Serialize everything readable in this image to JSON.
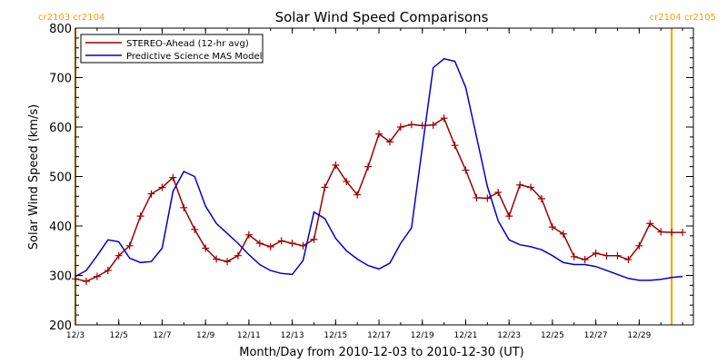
{
  "chart_data": {
    "type": "line",
    "title": "Solar Wind Speed Comparisons",
    "xlabel": "Month/Day from 2010-12-03 to 2010-12-30 (UT)",
    "ylabel": "Solar Wind Speed (km/s)",
    "xlim": [
      "2010-12-03",
      "2010-12-31T12:00"
    ],
    "ylim": [
      200,
      800
    ],
    "x_ticks": [
      {
        "x": "2010-12-03",
        "label": "12/3"
      },
      {
        "x": "2010-12-05",
        "label": "12/5"
      },
      {
        "x": "2010-12-07",
        "label": "12/7"
      },
      {
        "x": "2010-12-09",
        "label": "12/9"
      },
      {
        "x": "2010-12-11",
        "label": "12/11"
      },
      {
        "x": "2010-12-13",
        "label": "12/13"
      },
      {
        "x": "2010-12-15",
        "label": "12/15"
      },
      {
        "x": "2010-12-17",
        "label": "12/17"
      },
      {
        "x": "2010-12-19",
        "label": "12/19"
      },
      {
        "x": "2010-12-21",
        "label": "12/21"
      },
      {
        "x": "2010-12-23",
        "label": "12/23"
      },
      {
        "x": "2010-12-25",
        "label": "12/25"
      },
      {
        "x": "2010-12-27",
        "label": "12/27"
      },
      {
        "x": "2010-12-29",
        "label": "12/29"
      }
    ],
    "y_ticks": [
      200,
      300,
      400,
      500,
      600,
      700,
      800
    ],
    "grid": false,
    "legend_position": "top-left",
    "series": [
      {
        "name": "STEREO-Ahead (12-hr avg)",
        "color": "#990000",
        "marker": "plus",
        "x": [
          "2010-12-03",
          "2010-12-03T12:00",
          "2010-12-04",
          "2010-12-04T12:00",
          "2010-12-05",
          "2010-12-05T12:00",
          "2010-12-06",
          "2010-12-06T12:00",
          "2010-12-07",
          "2010-12-07T12:00",
          "2010-12-08",
          "2010-12-08T12:00",
          "2010-12-09",
          "2010-12-09T12:00",
          "2010-12-10",
          "2010-12-10T12:00",
          "2010-12-11",
          "2010-12-11T12:00",
          "2010-12-12",
          "2010-12-12T12:00",
          "2010-12-13",
          "2010-12-13T12:00",
          "2010-12-14",
          "2010-12-14T12:00",
          "2010-12-15",
          "2010-12-15T12:00",
          "2010-12-16",
          "2010-12-16T12:00",
          "2010-12-17",
          "2010-12-17T12:00",
          "2010-12-18",
          "2010-12-18T12:00",
          "2010-12-19",
          "2010-12-19T12:00",
          "2010-12-20",
          "2010-12-20T12:00",
          "2010-12-21",
          "2010-12-21T12:00",
          "2010-12-22",
          "2010-12-22T12:00",
          "2010-12-23",
          "2010-12-23T12:00",
          "2010-12-24",
          "2010-12-24T12:00",
          "2010-12-25",
          "2010-12-25T12:00",
          "2010-12-26",
          "2010-12-26T12:00",
          "2010-12-27",
          "2010-12-27T12:00",
          "2010-12-28",
          "2010-12-28T12:00",
          "2010-12-29",
          "2010-12-29T12:00",
          "2010-12-30",
          "2010-12-30T12:00",
          "2010-12-31"
        ],
        "y": [
          293,
          288,
          298,
          310,
          340,
          360,
          420,
          465,
          478,
          498,
          437,
          393,
          355,
          333,
          328,
          340,
          382,
          365,
          358,
          370,
          365,
          360,
          373,
          478,
          523,
          490,
          463,
          520,
          586,
          570,
          600,
          605,
          603,
          604,
          618,
          563,
          513,
          457,
          456,
          468,
          420,
          483,
          478,
          455,
          398,
          384,
          338,
          332,
          345,
          340,
          340,
          332,
          360,
          405,
          388,
          387,
          387
        ]
      },
      {
        "name": "Predictive Science MAS Model",
        "color": "#0000cc",
        "marker": "none",
        "x": [
          "2010-12-03",
          "2010-12-03T12:00",
          "2010-12-04",
          "2010-12-04T12:00",
          "2010-12-05",
          "2010-12-05T12:00",
          "2010-12-06",
          "2010-12-06T12:00",
          "2010-12-07",
          "2010-12-07T12:00",
          "2010-12-08",
          "2010-12-08T12:00",
          "2010-12-09",
          "2010-12-09T12:00",
          "2010-12-10",
          "2010-12-10T12:00",
          "2010-12-11",
          "2010-12-11T12:00",
          "2010-12-12",
          "2010-12-12T12:00",
          "2010-12-13",
          "2010-12-13T12:00",
          "2010-12-14",
          "2010-12-14T12:00",
          "2010-12-15",
          "2010-12-15T12:00",
          "2010-12-16",
          "2010-12-16T12:00",
          "2010-12-17",
          "2010-12-17T12:00",
          "2010-12-18",
          "2010-12-18T12:00",
          "2010-12-19",
          "2010-12-19T12:00",
          "2010-12-20",
          "2010-12-20T12:00",
          "2010-12-21",
          "2010-12-21T12:00",
          "2010-12-22",
          "2010-12-22T12:00",
          "2010-12-23",
          "2010-12-23T12:00",
          "2010-12-24",
          "2010-12-24T12:00",
          "2010-12-25",
          "2010-12-25T12:00",
          "2010-12-26",
          "2010-12-26T12:00",
          "2010-12-27",
          "2010-12-27T12:00",
          "2010-12-28",
          "2010-12-28T12:00",
          "2010-12-29",
          "2010-12-29T12:00",
          "2010-12-30",
          "2010-12-30T12:00",
          "2010-12-31"
        ],
        "y": [
          298,
          310,
          340,
          372,
          368,
          335,
          326,
          328,
          355,
          470,
          510,
          500,
          440,
          405,
          385,
          365,
          342,
          322,
          310,
          304,
          302,
          330,
          428,
          415,
          375,
          350,
          333,
          320,
          313,
          325,
          365,
          396,
          560,
          720,
          738,
          733,
          680,
          580,
          480,
          410,
          372,
          362,
          358,
          352,
          340,
          326,
          322,
          322,
          318,
          310,
          302,
          294,
          290,
          290,
          292,
          296,
          298
        ]
      }
    ],
    "annotations": [
      {
        "text": "cr2103 cr2104",
        "x": "2010-12-03",
        "color": "#ff9900"
      },
      {
        "text": "cr2104 cr2105",
        "x": "2010-12-30T12:00",
        "color": "#ff9900"
      }
    ]
  }
}
